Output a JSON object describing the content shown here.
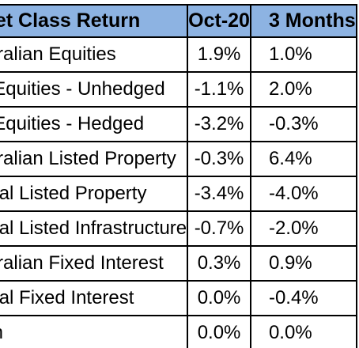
{
  "table": {
    "headers": [
      "Asset Class Return",
      "Oct-20",
      "3 Months"
    ],
    "rows": [
      {
        "label": "Australian Equities",
        "oct": "1.9%",
        "m3": "1.0%"
      },
      {
        "label": "Int'l Equities - Unhedged",
        "oct": "-1.1%",
        "m3": "2.0%"
      },
      {
        "label": "Int'l Equities - Hedged",
        "oct": "-3.2%",
        "m3": "-0.3%"
      },
      {
        "label": "Australian Listed Property",
        "oct": "-0.3%",
        "m3": "6.4%"
      },
      {
        "label": "Global Listed Property",
        "oct": "-3.4%",
        "m3": "-4.0%"
      },
      {
        "label": "Global Listed Infrastructure",
        "oct": "-0.7%",
        "m3": "-2.0%"
      },
      {
        "label": "Australian Fixed Interest",
        "oct": "0.3%",
        "m3": "0.9%"
      },
      {
        "label": "Global Fixed Interest",
        "oct": "0.0%",
        "m3": "-0.4%"
      },
      {
        "label": "Cash",
        "oct": "0.0%",
        "m3": "0.0%"
      }
    ]
  }
}
